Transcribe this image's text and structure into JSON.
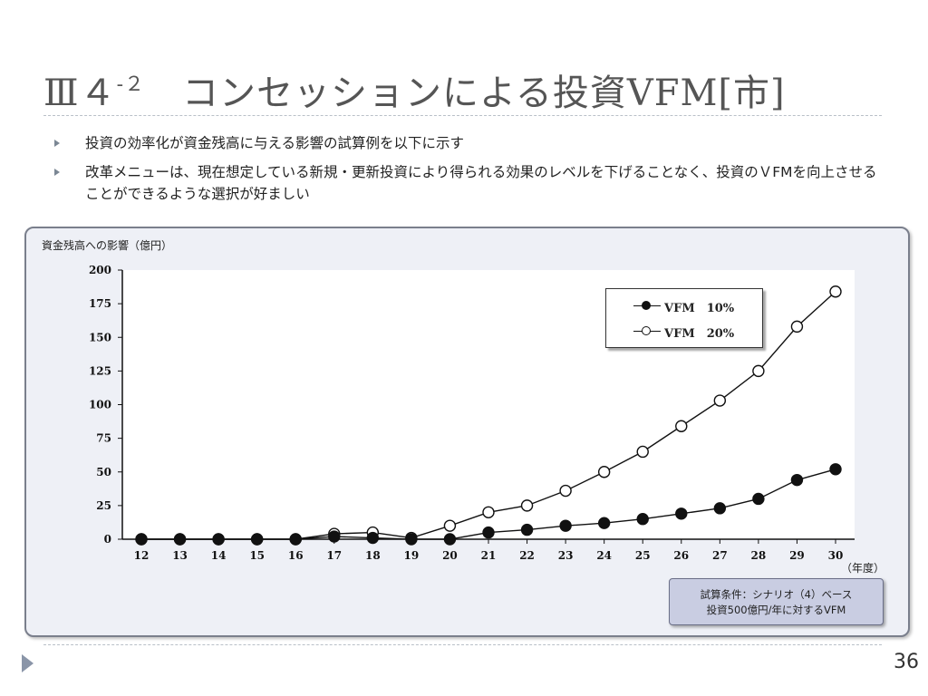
{
  "slide": {
    "title_main": "Ⅲ４",
    "title_sup": "-２",
    "title_rest": "　コンセッションによる投資VFM[市]",
    "bullets": [
      "投資の効率化が資金残高に与える影響の試算例を以下に示す",
      "改革メニューは、現在想定している新規・更新投資により得られる効果のレベルを下げることなく、投資のＶFMを向上させることができるような選択が好ましい"
    ],
    "page_number": "36",
    "condition_line1": "試算条件：シナリオ（4）ベース",
    "condition_line2": "投資500億円/年に対するVFM"
  },
  "chart_data": {
    "type": "line",
    "ylabel": "資金残高への影響（億円）",
    "xlabel": "（年度）",
    "x": [
      12,
      13,
      14,
      15,
      16,
      17,
      18,
      19,
      20,
      21,
      22,
      23,
      24,
      25,
      26,
      27,
      28,
      29,
      30
    ],
    "ylim": [
      0,
      200
    ],
    "yticks": [
      0,
      25,
      50,
      75,
      100,
      125,
      150,
      175,
      200
    ],
    "legend_position": "top-right",
    "series": [
      {
        "name": "VFM　10%",
        "marker": "filled",
        "values": [
          0,
          0,
          0,
          0,
          0,
          2,
          1,
          0,
          0,
          5,
          7,
          10,
          12,
          15,
          19,
          23,
          30,
          44,
          52
        ]
      },
      {
        "name": "VFM　20%",
        "marker": "open",
        "values": [
          0,
          0,
          0,
          0,
          0,
          4,
          5,
          1,
          10,
          20,
          25,
          36,
          50,
          65,
          84,
          103,
          125,
          158,
          184
        ]
      }
    ]
  }
}
